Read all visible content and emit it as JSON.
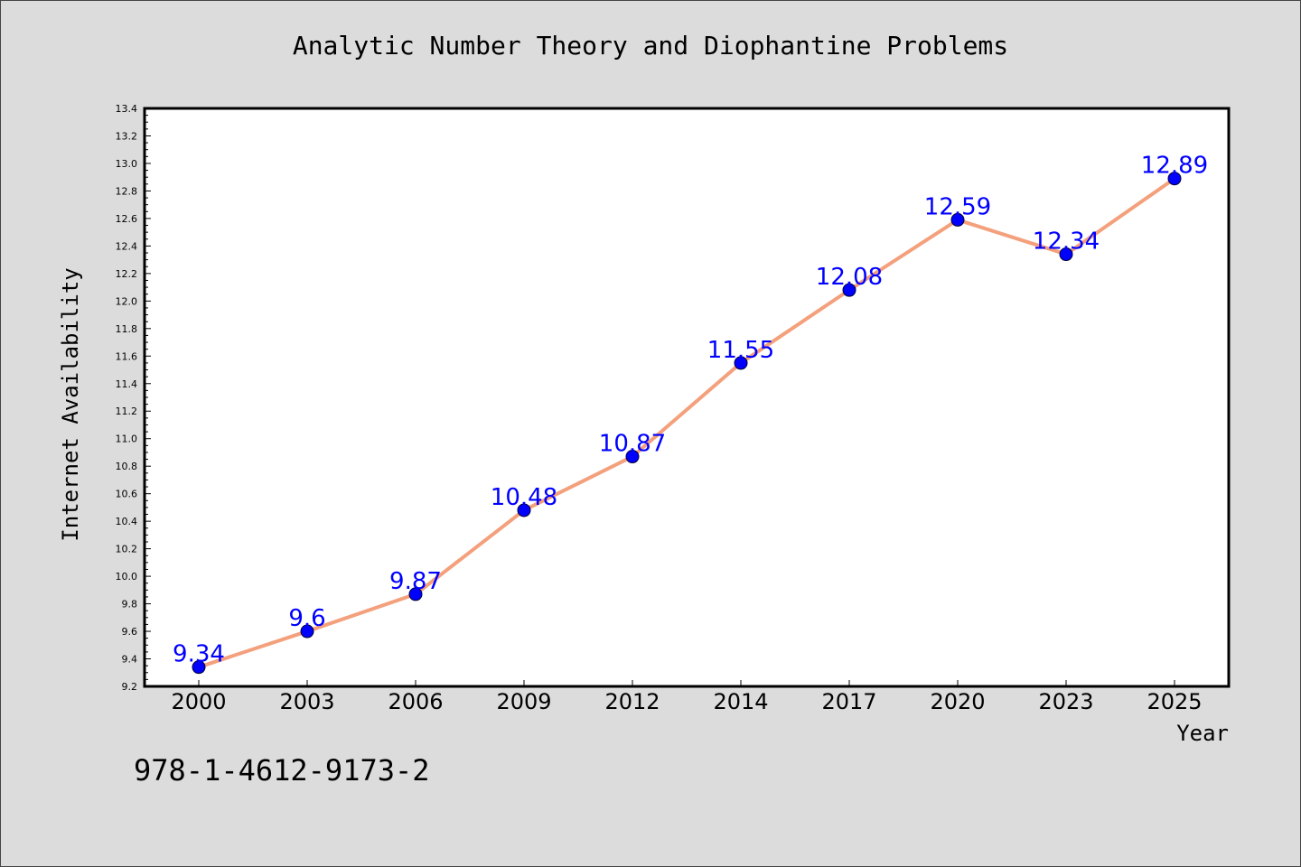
{
  "chart_title": "Analytic Number Theory and Diophantine Problems",
  "footer_text": "978-1-4612-9173-2",
  "colors": {
    "background": "#dcdcdc",
    "plot_background": "#ffffff",
    "line": "#f4a07c",
    "marker": "#0000ff",
    "data_label": "#0000ff"
  },
  "chart_data": {
    "type": "line",
    "title": "Analytic Number Theory and Diophantine Problems",
    "xlabel": "Year",
    "ylabel": "Internet Availability",
    "categories": [
      "2000",
      "2003",
      "2006",
      "2009",
      "2012",
      "2014",
      "2017",
      "2020",
      "2023",
      "2025"
    ],
    "series": [
      {
        "values": [
          9.34,
          9.6,
          9.87,
          10.48,
          10.87,
          11.55,
          12.08,
          12.59,
          12.34,
          12.89
        ]
      }
    ],
    "data_labels": [
      "9.34",
      "9.6",
      "9.87",
      "10.48",
      "10.87",
      "11.55",
      "12.08",
      "12.59",
      "12.34",
      "12.89"
    ],
    "ylim": [
      9.2,
      13.4
    ],
    "yticks": [
      "9.2",
      "9.4",
      "9.6",
      "9.8",
      "10.0",
      "10.2",
      "10.4",
      "10.6",
      "10.8",
      "11.0",
      "11.2",
      "11.4",
      "11.6",
      "11.8",
      "12.0",
      "12.2",
      "12.4",
      "12.6",
      "12.8",
      "13.0",
      "13.2",
      "13.4"
    ],
    "grid": false,
    "legend": "none"
  }
}
